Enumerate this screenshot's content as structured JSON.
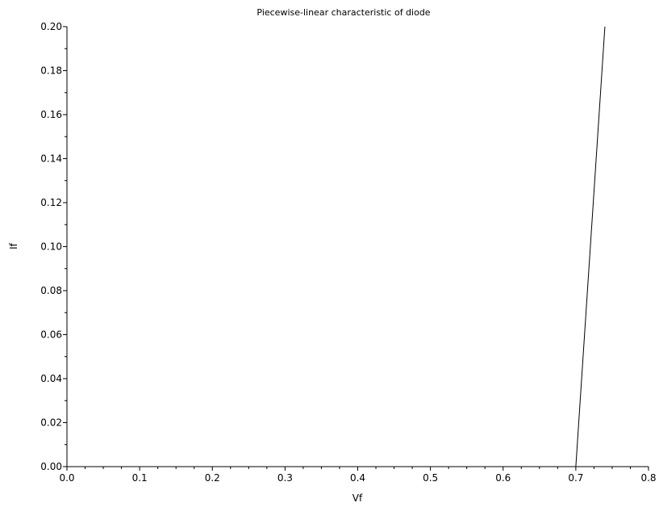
{
  "chart_data": {
    "type": "line",
    "title": "Piecewise-linear characteristic of diode",
    "xlabel": "Vf",
    "ylabel": "If",
    "xlim": [
      0.0,
      0.8
    ],
    "ylim": [
      0.0,
      0.2
    ],
    "grid": false,
    "xticks": [
      0.0,
      0.1,
      0.2,
      0.3,
      0.4,
      0.5,
      0.6,
      0.7,
      0.8
    ],
    "xtick_labels": [
      "0.0",
      "0.1",
      "0.2",
      "0.3",
      "0.4",
      "0.5",
      "0.6",
      "0.7",
      "0.8"
    ],
    "yticks": [
      0.0,
      0.02,
      0.04,
      0.06,
      0.08,
      0.1,
      0.12,
      0.14,
      0.16,
      0.18,
      0.2
    ],
    "ytick_labels": [
      "0.00",
      "0.02",
      "0.04",
      "0.06",
      "0.08",
      "0.10",
      "0.12",
      "0.14",
      "0.16",
      "0.18",
      "0.20"
    ],
    "series": [
      {
        "x": [
          0.0,
          0.7,
          0.74
        ],
        "y": [
          0.0,
          0.0,
          0.2
        ]
      }
    ]
  }
}
